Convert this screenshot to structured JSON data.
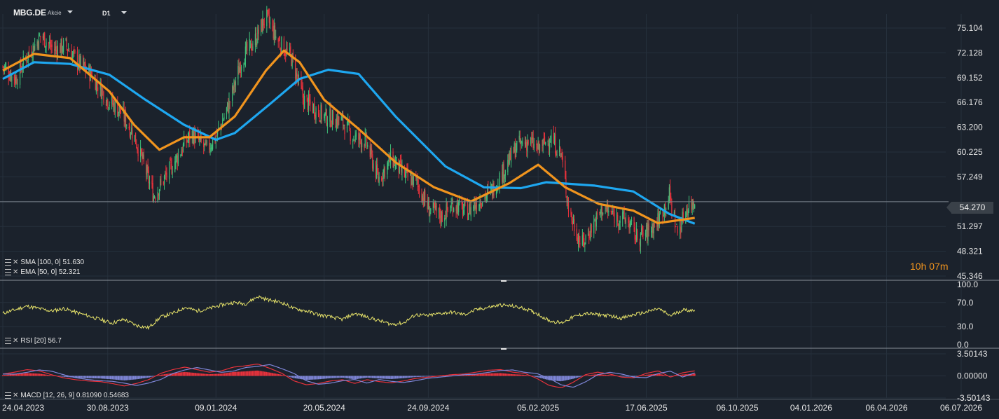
{
  "header": {
    "symbol": "MBG.DE",
    "instrument_type": "Akcie",
    "timeframe": "D1"
  },
  "last_price_label": "54.270",
  "countdown": {
    "hours": "10",
    "h_unit": "h",
    "minutes": "07",
    "m_unit": "m"
  },
  "colors": {
    "background": "#1b222c",
    "sma": "#1ea7f0",
    "ema": "#f0941e",
    "rsi": "#e8e46a",
    "macd_hist_pos": "#e8323c",
    "macd_hist_neg": "#7f86d8",
    "candle_up": "#3fbf78",
    "candle_down": "#e8323c"
  },
  "indicators": {
    "sma": {
      "name": "SMA",
      "params": "[100,  0]",
      "value": "51.630"
    },
    "ema": {
      "name": "EMA",
      "params": "[50,  0]",
      "value": "52.321"
    },
    "rsi": {
      "name": "RSI",
      "params": "[20]",
      "value": "56.7"
    },
    "macd": {
      "name": "MACD",
      "params": "[12,  26,  9]",
      "value1": "0.81090",
      "value2": "0.54683"
    }
  },
  "chart_data": [
    {
      "type": "candlestick",
      "panel": "price",
      "y_ticks": [
        "75.104",
        "72.128",
        "69.152",
        "66.176",
        "63.200",
        "60.225",
        "57.249",
        "54.270",
        "51.297",
        "48.321",
        "45.346"
      ],
      "ylim": [
        45.346,
        75.104
      ],
      "x_ticks": [
        "24.04.2023",
        "30.08.2023",
        "09.01.2024",
        "20.05.2024",
        "24.09.2024",
        "05.02.2025",
        "17.06.2025",
        "06.10.2025",
        "04.01.2026",
        "06.04.2026",
        "06.07.2026"
      ],
      "last_price": 54.27,
      "close_path": [
        [
          "2023-04-24",
          70.5
        ],
        [
          "2023-05-10",
          69.0
        ],
        [
          "2023-05-25",
          72.0
        ],
        [
          "2023-06-10",
          74.2
        ],
        [
          "2023-06-25",
          72.5
        ],
        [
          "2023-07-10",
          73.0
        ],
        [
          "2023-07-25",
          71.0
        ],
        [
          "2023-08-10",
          69.5
        ],
        [
          "2023-08-30",
          66.5
        ],
        [
          "2023-09-15",
          65.0
        ],
        [
          "2023-09-30",
          62.5
        ],
        [
          "2023-10-12",
          59.0
        ],
        [
          "2023-10-25",
          55.0
        ],
        [
          "2023-11-10",
          57.5
        ],
        [
          "2023-11-25",
          60.0
        ],
        [
          "2023-12-10",
          62.5
        ],
        [
          "2023-12-28",
          60.5
        ],
        [
          "2024-01-09",
          62.0
        ],
        [
          "2024-01-25",
          66.0
        ],
        [
          "2024-02-10",
          71.5
        ],
        [
          "2024-02-25",
          73.5
        ],
        [
          "2024-03-10",
          76.5
        ],
        [
          "2024-03-25",
          73.5
        ],
        [
          "2024-04-10",
          71.5
        ],
        [
          "2024-04-25",
          66.5
        ],
        [
          "2024-05-20",
          64.5
        ],
        [
          "2024-06-10",
          64.0
        ],
        [
          "2024-06-25",
          62.0
        ],
        [
          "2024-07-10",
          61.5
        ],
        [
          "2024-07-25",
          57.0
        ],
        [
          "2024-08-10",
          59.5
        ],
        [
          "2024-08-25",
          57.5
        ],
        [
          "2024-09-10",
          56.5
        ],
        [
          "2024-09-24",
          53.5
        ],
        [
          "2024-10-10",
          52.5
        ],
        [
          "2024-10-25",
          54.0
        ],
        [
          "2024-11-10",
          53.0
        ],
        [
          "2024-11-25",
          54.5
        ],
        [
          "2024-12-10",
          55.5
        ],
        [
          "2024-12-25",
          58.0
        ],
        [
          "2025-01-10",
          61.0
        ],
        [
          "2025-01-25",
          61.5
        ],
        [
          "2025-02-05",
          60.5
        ],
        [
          "2025-02-20",
          62.0
        ],
        [
          "2025-03-05",
          60.0
        ],
        [
          "2025-03-15",
          53.0
        ],
        [
          "2025-03-30",
          49.0
        ],
        [
          "2025-04-10",
          51.0
        ],
        [
          "2025-04-25",
          53.5
        ],
        [
          "2025-05-10",
          52.5
        ],
        [
          "2025-05-25",
          52.0
        ],
        [
          "2025-06-05",
          50.0
        ],
        [
          "2025-06-17",
          50.5
        ],
        [
          "2025-07-01",
          52.0
        ],
        [
          "2025-07-15",
          55.0
        ],
        [
          "2025-07-25",
          50.5
        ],
        [
          "2025-08-05",
          53.5
        ],
        [
          "2025-08-15",
          54.3
        ]
      ],
      "series": [
        {
          "name": "SMA [100, 0]",
          "path": [
            [
              "2023-04-24",
              69.0
            ],
            [
              "2023-06-01",
              71.0
            ],
            [
              "2023-07-15",
              70.8
            ],
            [
              "2023-09-01",
              69.5
            ],
            [
              "2023-10-15",
              66.5
            ],
            [
              "2023-12-01",
              63.5
            ],
            [
              "2024-01-09",
              61.7
            ],
            [
              "2024-02-01",
              62.5
            ],
            [
              "2024-03-15",
              66.0
            ],
            [
              "2024-04-20",
              69.0
            ],
            [
              "2024-05-25",
              70.1
            ],
            [
              "2024-07-01",
              69.6
            ],
            [
              "2024-08-15",
              64.5
            ],
            [
              "2024-10-15",
              58.5
            ],
            [
              "2024-12-01",
              56.0
            ],
            [
              "2025-01-15",
              55.9
            ],
            [
              "2025-02-15",
              56.6
            ],
            [
              "2025-04-15",
              56.2
            ],
            [
              "2025-06-01",
              55.5
            ],
            [
              "2025-07-15",
              52.8
            ],
            [
              "2025-08-15",
              51.63
            ]
          ]
        },
        {
          "name": "EMA [50, 0]",
          "path": [
            [
              "2023-04-24",
              70.0
            ],
            [
              "2023-06-01",
              72.0
            ],
            [
              "2023-07-15",
              71.5
            ],
            [
              "2023-09-01",
              67.5
            ],
            [
              "2023-10-01",
              63.5
            ],
            [
              "2023-11-01",
              60.5
            ],
            [
              "2023-12-01",
              62.0
            ],
            [
              "2024-01-01",
              62.0
            ],
            [
              "2024-02-01",
              64.5
            ],
            [
              "2024-03-10",
              70.0
            ],
            [
              "2024-04-01",
              72.4
            ],
            [
              "2024-04-20",
              71.0
            ],
            [
              "2024-05-20",
              66.5
            ],
            [
              "2024-07-01",
              63.0
            ],
            [
              "2024-08-15",
              59.0
            ],
            [
              "2024-10-01",
              56.0
            ],
            [
              "2024-11-15",
              54.3
            ],
            [
              "2025-01-01",
              56.5
            ],
            [
              "2025-02-05",
              58.7
            ],
            [
              "2025-03-10",
              56.0
            ],
            [
              "2025-04-20",
              54.0
            ],
            [
              "2025-06-01",
              53.2
            ],
            [
              "2025-07-01",
              51.7
            ],
            [
              "2025-08-15",
              52.32
            ]
          ]
        }
      ]
    },
    {
      "type": "line",
      "panel": "rsi",
      "y_ticks": [
        "100.0",
        "70.0",
        "30.0",
        "0.0"
      ],
      "ylim": [
        0,
        100
      ],
      "series": [
        {
          "name": "RSI [20]",
          "values": [
            52,
            58,
            64,
            60,
            56,
            60,
            54,
            48,
            42,
            36,
            42,
            32,
            28,
            46,
            52,
            62,
            56,
            60,
            66,
            70,
            68,
            80,
            74,
            70,
            60,
            56,
            50,
            46,
            42,
            52,
            46,
            40,
            34,
            36,
            50,
            48,
            52,
            54,
            50,
            58,
            62,
            66,
            64,
            60,
            52,
            40,
            36,
            46,
            52,
            50,
            48,
            44,
            50,
            54,
            60,
            48,
            58,
            56.7
          ]
        }
      ]
    },
    {
      "type": "bar",
      "panel": "macd",
      "y_ticks": [
        "3.50143",
        "0.00000",
        "-3.50143"
      ],
      "ylim": [
        -3.50143,
        3.50143
      ],
      "series": [
        {
          "name": "MACD histogram",
          "values": [
            0.3,
            0.6,
            1.0,
            0.8,
            0.2,
            -0.3,
            -0.6,
            -0.8,
            -0.9,
            -1.2,
            -1.6,
            -1.2,
            -0.6,
            0.4,
            1.0,
            1.4,
            1.0,
            0.6,
            0.8,
            1.4,
            1.6,
            1.9,
            1.2,
            0.4,
            -0.8,
            -1.4,
            -1.2,
            -0.8,
            -0.6,
            -1.2,
            -0.6,
            -0.9,
            -1.1,
            -0.8,
            -0.4,
            -0.2,
            0.0,
            0.2,
            0.3,
            0.6,
            0.9,
            1.0,
            0.6,
            0.4,
            -0.4,
            -1.5,
            -1.9,
            -1.0,
            0.2,
            0.6,
            0.3,
            -0.2,
            -0.3,
            0.4,
            0.8,
            -0.2,
            0.5,
            0.8
          ]
        }
      ]
    }
  ]
}
